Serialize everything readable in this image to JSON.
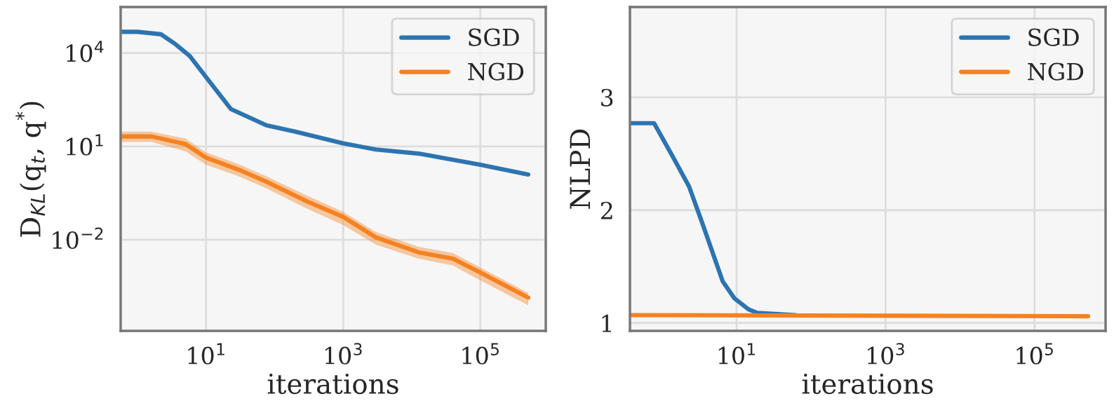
{
  "chart_data": [
    {
      "type": "line",
      "xlabel": "iterations",
      "ylabel": "D$_{KL}$(q$_{t}$, q$^{*}$)",
      "log": "xy",
      "grid": true,
      "legend": "top right",
      "xlim": [
        0.57,
        900000
      ],
      "ylim": [
        1.2e-05,
        300000
      ],
      "xticks": [
        {
          "value": 10,
          "label": "10$^{1}$"
        },
        {
          "value": 1000,
          "label": "10$^{3}$"
        },
        {
          "value": 100000,
          "label": "10$^{5}$"
        }
      ],
      "yticks": [
        {
          "value": 0.01,
          "label": "10$^{−2}$"
        },
        {
          "value": 10,
          "label": "10$^{1}$"
        },
        {
          "value": 10000,
          "label": "10$^{4}$"
        }
      ],
      "series": [
        {
          "name": "SGD",
          "color": "#2d74b0",
          "x": [
            0.57,
            1,
            2.2,
            3.5,
            5.8,
            10,
            23,
            76,
            200,
            1000,
            3000,
            12600,
            100000,
            500000
          ],
          "values": [
            48000,
            48000,
            40000,
            20000,
            8000,
            1700,
            160,
            48,
            30,
            12.6,
            8,
            5.9,
            2.6,
            1.26
          ]
        },
        {
          "name": "NGD",
          "color": "#f58220",
          "x": [
            0.57,
            1.6,
            5,
            10,
            30,
            76,
            300,
            1000,
            3000,
            12600,
            40000,
            100000,
            500000
          ],
          "values": [
            21,
            21,
            12,
            4.4,
            1.8,
            0.74,
            0.17,
            0.055,
            0.012,
            0.004,
            0.0025,
            0.0009,
            0.00014
          ],
          "lower": [
            14,
            14,
            7,
            2.6,
            1.1,
            0.45,
            0.1,
            0.03,
            0.007,
            0.0025,
            0.0015,
            0.0005,
            8e-05
          ],
          "upper": [
            30,
            30,
            18,
            6.5,
            2.7,
            1.1,
            0.26,
            0.08,
            0.018,
            0.006,
            0.0038,
            0.0013,
            0.0002
          ]
        }
      ]
    },
    {
      "type": "line",
      "xlabel": "iterations",
      "ylabel": "NLPD",
      "log": "x",
      "grid": true,
      "legend": "top right",
      "xlim": [
        0.37,
        900000
      ],
      "ylim": [
        0.93,
        3.8
      ],
      "xticks": [
        {
          "value": 10,
          "label": "10$^{1}$"
        },
        {
          "value": 1000,
          "label": "10$^{3}$"
        },
        {
          "value": 100000,
          "label": "10$^{5}$"
        }
      ],
      "yticks": [
        1,
        2,
        3
      ],
      "series": [
        {
          "name": "SGD",
          "color": "#2d74b0",
          "x": [
            0.37,
            0.78,
            1.4,
            2.3,
            3.4,
            6.5,
            9.3,
            14.5,
            19,
            62
          ],
          "values": [
            2.77,
            2.77,
            2.47,
            2.21,
            1.9,
            1.37,
            1.22,
            1.12,
            1.09,
            1.07
          ]
        },
        {
          "name": "NGD",
          "color": "#f58220",
          "x": [
            0.37,
            525000
          ],
          "values": [
            1.07,
            1.06
          ]
        }
      ]
    }
  ]
}
